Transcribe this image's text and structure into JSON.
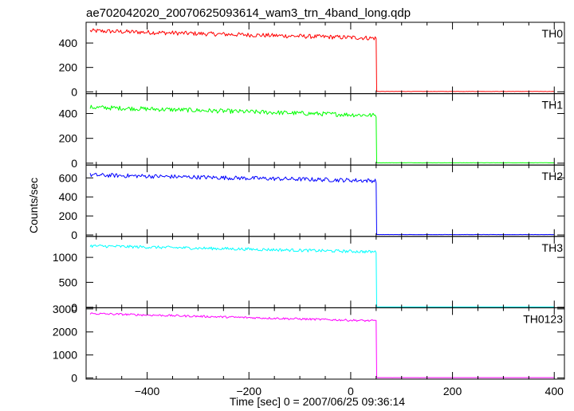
{
  "chart_data": {
    "type": "line",
    "title": "ae702042020_20070625093614_wam3_trn_4band_long.qdp",
    "xlabel": "Time [sec] 0 = 2007/06/25 09:36:14",
    "ylabel": "Counts/sec",
    "xlim": [
      -520,
      420
    ],
    "x_ticks": [
      -400,
      -200,
      0,
      200,
      400
    ],
    "x_tick_labels": [
      "−400",
      "−200",
      "0",
      "200",
      "400"
    ],
    "drop_time": 50,
    "panels": [
      {
        "name": "TH0",
        "color": "#ff0000",
        "ylim": [
          -15,
          570
        ],
        "y_ticks": [
          0,
          200,
          400
        ],
        "y_tick_labels": [
          "0",
          "200",
          "400"
        ],
        "level_start": 500,
        "level_end": 440,
        "noise": 18,
        "after_drop": 3
      },
      {
        "name": "TH1",
        "color": "#00ff00",
        "ylim": [
          -15,
          560
        ],
        "y_ticks": [
          0,
          200,
          400
        ],
        "y_tick_labels": [
          "0",
          "200",
          "400"
        ],
        "level_start": 450,
        "level_end": 385,
        "noise": 18,
        "after_drop": 3
      },
      {
        "name": "TH2",
        "color": "#0000ff",
        "ylim": [
          -15,
          735
        ],
        "y_ticks": [
          0,
          200,
          400,
          600
        ],
        "y_tick_labels": [
          "0",
          "200",
          "400",
          "600"
        ],
        "level_start": 630,
        "level_end": 570,
        "noise": 22,
        "after_drop": 4
      },
      {
        "name": "TH3",
        "color": "#00ffff",
        "ylim": [
          -10,
          1420
        ],
        "y_ticks": [
          0,
          500,
          1000
        ],
        "y_tick_labels": [
          "0",
          "500",
          "1000"
        ],
        "level_start": 1230,
        "level_end": 1110,
        "noise": 30,
        "after_drop": 8
      },
      {
        "name": "TH0123",
        "color": "#ff00ff",
        "ylim": [
          -50,
          3050
        ],
        "y_ticks": [
          0,
          1000,
          2000,
          3000
        ],
        "y_tick_labels": [
          "0",
          "1000",
          "2000",
          "3000"
        ],
        "level_start": 2800,
        "level_end": 2480,
        "noise": 45,
        "after_drop": 15
      }
    ]
  }
}
